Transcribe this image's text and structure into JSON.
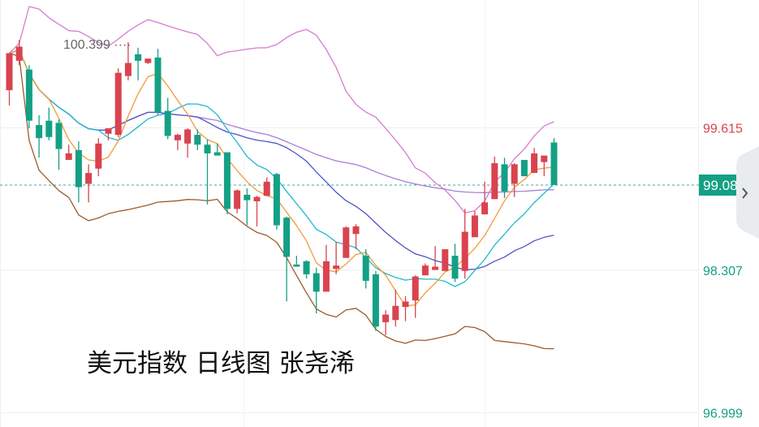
{
  "caption": "美元指数 日线图 张尧浠",
  "colors": {
    "up": "#d9434f",
    "down": "#14a085",
    "ma5": "#f29b38",
    "ma10": "#22b8d0",
    "ma20": "#4b55c7",
    "ma60": "#a67fd9",
    "boll_upper": "#d87ad2",
    "boll_lower": "#9a5b2e",
    "grid": "#eeeeee",
    "current_box": "#14a085",
    "current_line": "#3aa8a0",
    "nav_icon": "chevron-right-icon"
  },
  "chart_data": {
    "type": "candlestick",
    "title": "美元指数 日线图 张尧浠",
    "ylim": [
      96.868,
      100.788
    ],
    "y_ticks": [
      {
        "value": 99.615,
        "label": "99.615",
        "color": "#d9434f"
      },
      {
        "value": 98.307,
        "label": "98.307",
        "color": "#14a085"
      },
      {
        "value": 96.999,
        "label": "96.999",
        "color": "#14a085"
      }
    ],
    "current_price": {
      "value": 99.089,
      "label": "99.089"
    },
    "high_marker": {
      "value": 100.399,
      "label": "100.399"
    },
    "candles": [
      [
        99.96,
        100.3,
        100.17,
        99.82
      ],
      [
        100.23,
        100.36,
        100.42,
        100.19
      ],
      [
        100.15,
        99.68,
        100.19,
        99.61
      ],
      [
        99.64,
        99.52,
        99.73,
        99.34
      ],
      [
        99.68,
        99.53,
        99.8,
        99.5
      ],
      [
        99.66,
        99.42,
        99.69,
        99.23
      ],
      [
        99.32,
        99.38,
        99.46,
        99.33
      ],
      [
        99.41,
        99.07,
        99.49,
        98.93
      ],
      [
        99.1,
        99.2,
        99.28,
        98.93
      ],
      [
        99.24,
        99.47,
        99.52,
        99.17
      ],
      [
        99.56,
        99.61,
        99.6,
        99.5
      ],
      [
        99.55,
        100.12,
        100.16,
        99.53
      ],
      [
        100.09,
        100.21,
        100.4,
        100.05
      ],
      [
        100.29,
        100.23,
        100.35,
        100.05
      ],
      [
        100.21,
        100.25,
        100.23,
        100.2
      ],
      [
        100.26,
        99.76,
        100.34,
        99.73
      ],
      [
        99.77,
        99.54,
        99.89,
        99.51
      ],
      [
        99.5,
        99.55,
        99.56,
        99.41
      ],
      [
        99.47,
        99.6,
        99.61,
        99.34
      ],
      [
        99.55,
        99.46,
        99.6,
        99.41
      ],
      [
        99.46,
        99.38,
        99.51,
        98.91
      ],
      [
        99.39,
        99.36,
        99.47,
        99.36
      ],
      [
        99.39,
        98.87,
        99.37,
        98.82
      ],
      [
        98.87,
        99.04,
        99.05,
        98.83
      ],
      [
        99.0,
        98.95,
        99.06,
        98.72
      ],
      [
        98.94,
        98.98,
        98.99,
        98.71
      ],
      [
        98.99,
        99.12,
        99.16,
        98.99
      ],
      [
        99.19,
        98.72,
        99.2,
        98.68
      ],
      [
        98.79,
        98.43,
        98.8,
        98.02
      ],
      [
        98.36,
        98.34,
        98.44,
        98.36
      ],
      [
        98.39,
        98.27,
        98.4,
        98.23
      ],
      [
        98.28,
        98.11,
        98.33,
        97.91
      ],
      [
        98.11,
        98.39,
        98.54,
        98.16
      ],
      [
        98.32,
        98.35,
        98.57,
        98.27
      ],
      [
        98.42,
        98.7,
        98.71,
        98.61
      ],
      [
        98.64,
        98.71,
        98.73,
        98.5
      ],
      [
        98.44,
        98.21,
        98.5,
        98.14
      ],
      [
        98.27,
        97.79,
        98.3,
        97.75
      ],
      [
        97.83,
        97.9,
        97.94,
        97.71
      ],
      [
        97.85,
        97.98,
        98.13,
        97.79
      ],
      [
        97.97,
        98.02,
        98.07,
        97.84
      ],
      [
        98.03,
        98.25,
        98.26,
        97.87
      ],
      [
        98.26,
        98.35,
        98.37,
        98.27
      ],
      [
        98.31,
        98.34,
        98.53,
        98.32
      ],
      [
        98.3,
        98.5,
        98.49,
        98.42
      ],
      [
        98.44,
        98.23,
        98.55,
        98.2
      ],
      [
        98.3,
        98.66,
        98.87,
        98.23
      ],
      [
        98.61,
        98.81,
        98.85,
        98.64
      ],
      [
        98.82,
        98.93,
        99.12,
        98.87
      ],
      [
        98.96,
        99.29,
        99.35,
        98.98
      ],
      [
        99.28,
        99.03,
        99.34,
        98.97
      ],
      [
        99.1,
        99.28,
        99.29,
        98.98
      ],
      [
        99.32,
        99.17,
        99.31,
        99.22
      ],
      [
        99.2,
        99.38,
        99.43,
        99.29
      ],
      [
        99.3,
        99.36,
        99.31,
        99.17
      ],
      [
        99.48,
        99.09,
        99.52,
        99.17
      ]
    ]
  }
}
